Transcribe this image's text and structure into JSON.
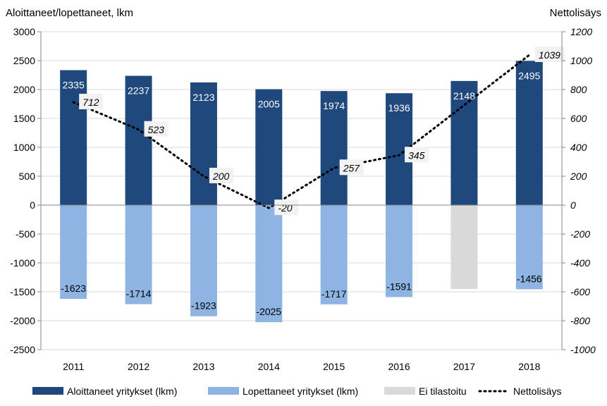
{
  "chart_data": {
    "type": "bar",
    "left_axis_title": "Aloittaneet/lopettaneet,  lkm",
    "right_axis_title": "Nettolisäys",
    "categories": [
      "2011",
      "2012",
      "2013",
      "2014",
      "2015",
      "2016",
      "2017",
      "2018"
    ],
    "series": [
      {
        "name": "Aloittaneet yritykset (lkm)",
        "axis": "left",
        "color": "#1f497d",
        "values": [
          2335,
          2237,
          2123,
          2005,
          1974,
          1936,
          2148,
          2495
        ],
        "labels": [
          "2335",
          "2237",
          "2123",
          "2005",
          "1974",
          "1936",
          "2148",
          "2495"
        ]
      },
      {
        "name": "Lopettaneet yritykset (lkm)",
        "axis": "left",
        "color": "#8db4e2",
        "values": [
          -1623,
          -1714,
          -1923,
          -2025,
          -1717,
          -1591,
          null,
          -1456
        ],
        "labels": [
          "-1623",
          "-1714",
          "-1923",
          "-2025",
          "-1717",
          "-1591",
          "",
          "-1456"
        ]
      },
      {
        "name": "Ei tilastoitu",
        "axis": "left",
        "color": "#d9d9d9",
        "values": [
          null,
          null,
          null,
          null,
          null,
          null,
          -1450,
          null
        ]
      },
      {
        "name": "Nettolisäys",
        "axis": "right",
        "type": "line",
        "style": "dotted",
        "color": "#000000",
        "values": [
          712,
          523,
          200,
          -20,
          257,
          345,
          null,
          1039
        ],
        "labels": [
          "712",
          "523",
          "200",
          "-20",
          "257",
          "345",
          "",
          "1039"
        ]
      }
    ],
    "left_axis": {
      "ylim": [
        -2500,
        3000
      ],
      "ticks": [
        "3000",
        "2500",
        "2000",
        "1500",
        "1000",
        "500",
        "0",
        "-500",
        "-1000",
        "-1500",
        "-2000",
        "-2500"
      ]
    },
    "right_axis": {
      "ylim": [
        -1000,
        1200
      ],
      "ticks": [
        "1200",
        "1000",
        "800",
        "600",
        "400",
        "200",
        "0",
        "-200",
        "-400",
        "-600",
        "-800",
        "-1000"
      ]
    },
    "grid": true,
    "legend_position": "bottom"
  }
}
